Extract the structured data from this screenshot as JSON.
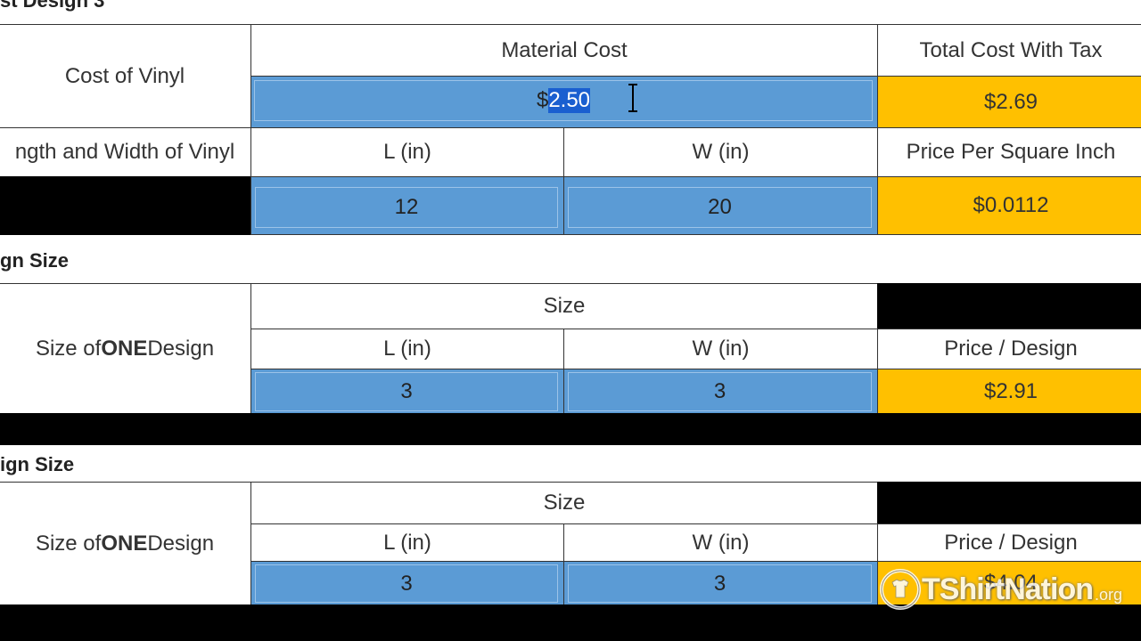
{
  "page": {
    "top_partial_title": "st Design 3"
  },
  "vinyl_table": {
    "cost_label": "Cost of Vinyl",
    "material_cost_header": "Material Cost",
    "total_cost_header": "Total Cost With Tax",
    "material_cost_prefix": "$",
    "material_cost_selected": "2.50",
    "total_cost_value": "$2.69",
    "dims_label": "ngth and Width of Vinyl",
    "l_header": "L (in)",
    "w_header": "W (in)",
    "ppsi_header": "Price Per Square Inch",
    "l_value": "12",
    "w_value": "20",
    "ppsi_value": "$0.0112"
  },
  "design_size_1": {
    "section_title": "gn Size",
    "row_label_pre": "Size of ",
    "row_label_bold": "ONE",
    "row_label_post": " Design",
    "size_header": "Size",
    "l_header": "L (in)",
    "w_header": "W (in)",
    "price_header": "Price / Design",
    "l_value": "3",
    "w_value": "3",
    "price_value": "$2.91"
  },
  "design_size_2": {
    "section_title": "ign Size",
    "row_label_pre": "Size of ",
    "row_label_bold": "ONE",
    "row_label_post": " Design",
    "size_header": "Size",
    "l_header": "L (in)",
    "w_header": "W (in)",
    "price_header": "Price / Design",
    "l_value": "3",
    "w_value": "3",
    "price_value": "$4.04"
  },
  "watermark": {
    "text": "TShirtNation",
    "suffix": ".org"
  },
  "colors": {
    "input_blue": "#5b9bd5",
    "output_orange": "#ffc000",
    "selection": "#1a5fd0"
  }
}
